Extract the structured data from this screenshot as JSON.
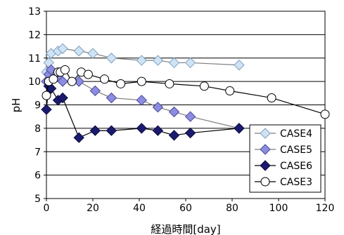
{
  "chart_data": {
    "type": "line",
    "title": "",
    "xlabel": "経過時間[day]",
    "ylabel": "pH",
    "xlim": [
      0,
      120
    ],
    "ylim": [
      5,
      13
    ],
    "x_ticks": [
      0,
      20,
      40,
      60,
      80,
      100,
      120
    ],
    "y_ticks": [
      5,
      6,
      7,
      8,
      9,
      10,
      11,
      12,
      13
    ],
    "grid": "horizontal",
    "legend_position": "bottom-right",
    "series": [
      {
        "name": "CASE4",
        "marker": "diamond",
        "fill": "#cfe3f5",
        "stroke": "#7f9fbf",
        "line": "#7f7f7f",
        "points": [
          [
            0,
            10.4
          ],
          [
            1,
            10.8
          ],
          [
            2,
            11.2
          ],
          [
            5,
            11.3
          ],
          [
            7,
            11.4
          ],
          [
            14,
            11.3
          ],
          [
            20,
            11.2
          ],
          [
            28,
            11.0
          ],
          [
            41,
            10.9
          ],
          [
            48,
            10.9
          ],
          [
            55,
            10.8
          ],
          [
            62,
            10.8
          ],
          [
            83,
            10.7
          ]
        ]
      },
      {
        "name": "CASE5",
        "marker": "diamond",
        "fill": "#8c8ce0",
        "stroke": "#4a4a9a",
        "line": "#7f7f7f",
        "points": [
          [
            0,
            10.0
          ],
          [
            1,
            10.3
          ],
          [
            2,
            10.5
          ],
          [
            5,
            10.2
          ],
          [
            7,
            10.0
          ],
          [
            14,
            10.0
          ],
          [
            21,
            9.6
          ],
          [
            28,
            9.3
          ],
          [
            41,
            9.2
          ],
          [
            48,
            8.9
          ],
          [
            55,
            8.7
          ],
          [
            62,
            8.5
          ],
          [
            83,
            8.0
          ]
        ]
      },
      {
        "name": "CASE6",
        "marker": "diamond",
        "fill": "#1a1a6e",
        "stroke": "#0d0d40",
        "line": "#000000",
        "points": [
          [
            0,
            8.8
          ],
          [
            1,
            9.8
          ],
          [
            2,
            9.7
          ],
          [
            5,
            9.2
          ],
          [
            7,
            9.3
          ],
          [
            14,
            7.6
          ],
          [
            21,
            7.9
          ],
          [
            28,
            7.9
          ],
          [
            41,
            8.0
          ],
          [
            48,
            7.9
          ],
          [
            55,
            7.7
          ],
          [
            62,
            7.8
          ],
          [
            83,
            8.0
          ]
        ]
      },
      {
        "name": "CASE3",
        "marker": "circle",
        "fill": "#ffffff",
        "stroke": "#000000",
        "line": "#000000",
        "points": [
          [
            0,
            9.4
          ],
          [
            1,
            10.0
          ],
          [
            3,
            10.1
          ],
          [
            5,
            10.4
          ],
          [
            6,
            10.4
          ],
          [
            8,
            10.5
          ],
          [
            11,
            10.0
          ],
          [
            15,
            10.4
          ],
          [
            18,
            10.3
          ],
          [
            25,
            10.1
          ],
          [
            32,
            9.9
          ],
          [
            41,
            10.0
          ],
          [
            53,
            9.9
          ],
          [
            68,
            9.8
          ],
          [
            79,
            9.6
          ],
          [
            97,
            9.3
          ],
          [
            120,
            8.6
          ]
        ]
      }
    ]
  }
}
